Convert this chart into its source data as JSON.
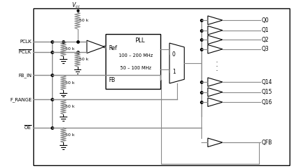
{
  "title": "",
  "bg_color": "#ffffff",
  "line_color": "#888888",
  "dark_color": "#000000",
  "figsize": [
    4.32,
    2.42
  ],
  "dpi": 100,
  "outputs": [
    "Q0",
    "Q1",
    "Q2",
    "Q3",
    "Q14",
    "Q15",
    "Q16",
    "QFB"
  ],
  "pll_text_top": "PLL",
  "pll_text_mid1": "100 – 200 MHz",
  "pll_text_mid2": "50 – 100 MHz",
  "pll_label_ref": "Ref",
  "pll_label_fb": "FB",
  "mux_label_0": "0",
  "mux_label_1": "1",
  "res_label": "50 k",
  "vcc_label": "V",
  "vcc_sub": "cc"
}
